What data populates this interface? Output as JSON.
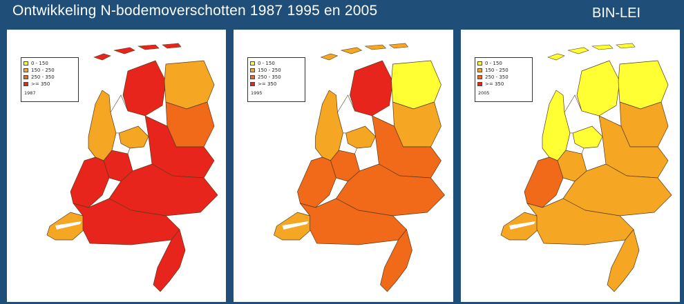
{
  "header": {
    "title": "Ontwikkeling N-bodemoverschotten  1987 1995  en  2005",
    "brand": "BIN-LEI"
  },
  "legend": {
    "classes": [
      {
        "label": "0 - 150",
        "color": "#ffff33"
      },
      {
        "label": "150 - 250",
        "color": "#f5a623"
      },
      {
        "label": "250 - 350",
        "color": "#f06a1a"
      },
      {
        "label": ">= 350",
        "color": "#e8251c"
      }
    ]
  },
  "maps": [
    {
      "year": "1987"
    },
    {
      "year": "1995"
    },
    {
      "year": "2005"
    }
  ],
  "colors": {
    "background": "#1f4e79",
    "water": "#ffffff",
    "outline": "#5a3a1a"
  }
}
